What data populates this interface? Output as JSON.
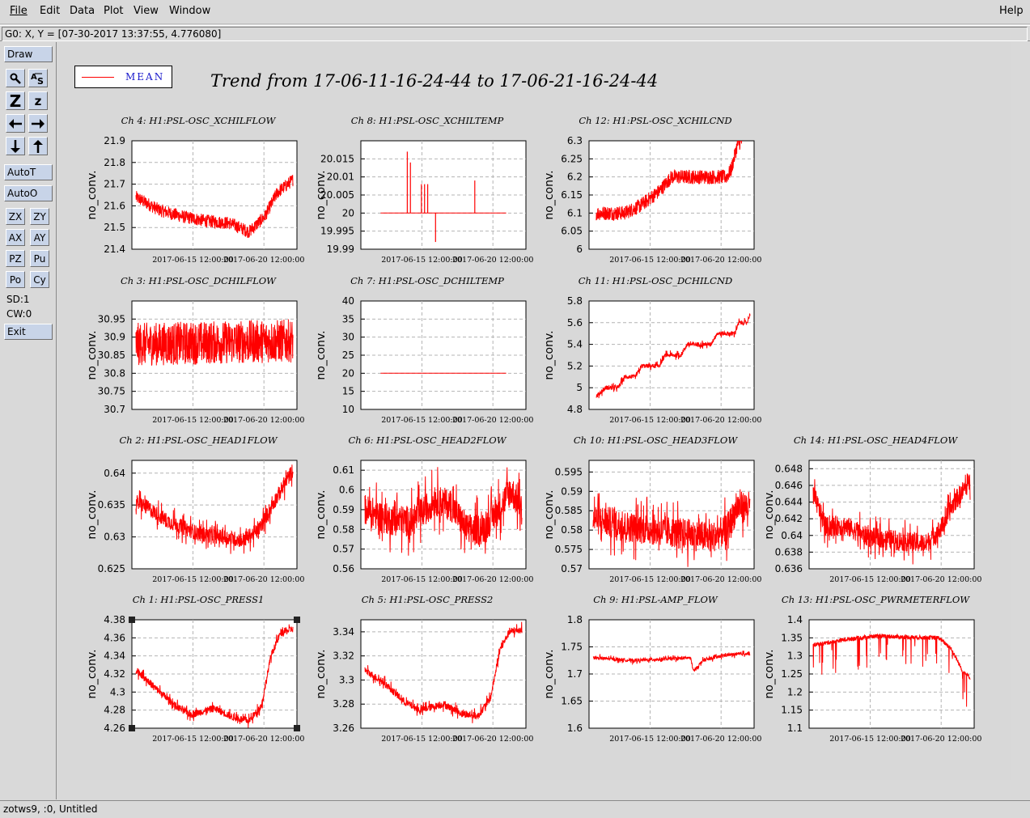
{
  "menu": {
    "file": "File",
    "edit": "Edit",
    "data": "Data",
    "plot": "Plot",
    "view": "View",
    "window": "Window",
    "help": "Help"
  },
  "coord_readout": "G0: X, Y = [07-30-2017 13:37:55, 4.776080]",
  "toolbar": {
    "draw": "Draw",
    "autot": "AutoT",
    "autoo": "AutoO",
    "zx": "ZX",
    "zy": "ZY",
    "ax": "AX",
    "ay": "AY",
    "pz": "PZ",
    "pu": "Pu",
    "po": "Po",
    "cy": "Cy",
    "sd": "SD:1",
    "cw": "CW:0",
    "exit": "Exit",
    "zoom_big": "Z",
    "zoom_small": "z",
    "icons": [
      "magnifier-icon",
      "autoscale-text-icon",
      "zoom-in-icon",
      "zoom-out-icon",
      "arrow-left-icon",
      "arrow-right-icon",
      "arrow-down-icon",
      "arrow-up-icon"
    ]
  },
  "legend": {
    "label": "MEAN",
    "line_color": "#ff0000",
    "text_color": "#1a1acc"
  },
  "title": "Trend from 17-06-11-16-24-44 to 17-06-21-16-24-44",
  "status": "zotws9, :0, Untitled",
  "colors": {
    "trace": "#ff0000",
    "grid": "#b4b4b4",
    "button": "#c8d4e8"
  },
  "chart_data": [
    {
      "type": "line",
      "title": "Ch 4: H1:PSL-OSC_XCHILFLOW",
      "ylabel": "no_conv.",
      "ylim": [
        21.4,
        21.9
      ],
      "yticks": [
        "21.9",
        "21.8",
        "21.7",
        "21.6",
        "21.5",
        "21.4"
      ],
      "xticks": [
        "2017-06-15 12:00:00",
        "2017-06-20 12:00:00"
      ],
      "shape": "noisy_band",
      "points": [
        [
          0,
          21.64
        ],
        [
          0.15,
          21.58
        ],
        [
          0.3,
          21.55
        ],
        [
          0.45,
          21.53
        ],
        [
          0.6,
          21.52
        ],
        [
          0.72,
          21.48
        ],
        [
          0.82,
          21.55
        ],
        [
          0.9,
          21.66
        ],
        [
          1,
          21.72
        ]
      ],
      "noise": 0.03
    },
    {
      "type": "line",
      "title": "Ch 8: H1:PSL-OSC_XCHILTEMP",
      "ylabel": "no_conv.",
      "ylim": [
        19.99,
        20.02
      ],
      "yticks": [
        "20.015",
        "20.01",
        "20.005",
        "20",
        "19.995",
        "19.99"
      ],
      "xticks": [
        "2017-06-15 12:00:00",
        "2017-06-20 12:00:00"
      ],
      "shape": "flat_spikes",
      "points": [
        [
          0.1,
          20
        ],
        [
          0.9,
          20
        ]
      ],
      "spikes": [
        [
          0.27,
          20.017
        ],
        [
          0.29,
          20.014
        ],
        [
          0.36,
          20.008
        ],
        [
          0.38,
          20.008
        ],
        [
          0.4,
          20.008
        ],
        [
          0.45,
          19.992
        ],
        [
          0.7,
          20.009
        ]
      ]
    },
    {
      "type": "line",
      "title": "Ch 12: H1:PSL-OSC_XCHILCND",
      "ylabel": "no_conv.",
      "ylim": [
        6,
        6.3
      ],
      "yticks": [
        "6.3",
        "6.25",
        "6.2",
        "6.15",
        "6.1",
        "6.05",
        "6"
      ],
      "xticks": [
        "2017-06-15 12:00:00",
        "2017-06-20 12:00:00"
      ],
      "shape": "ramp_band",
      "points": [
        [
          0.02,
          6.1
        ],
        [
          0.1,
          6.1
        ],
        [
          0.2,
          6.1
        ],
        [
          0.3,
          6.12
        ],
        [
          0.42,
          6.16
        ],
        [
          0.5,
          6.2
        ],
        [
          0.85,
          6.2
        ],
        [
          0.88,
          6.22
        ],
        [
          0.92,
          6.29
        ],
        [
          0.95,
          6.3
        ]
      ],
      "noise": 0.02
    },
    {
      "type": "line",
      "title": "Ch 3: H1:PSL-OSC_DCHILFLOW",
      "ylabel": "no_conv.",
      "ylim": [
        30.7,
        31
      ],
      "yticks": [
        "30.95",
        "30.9",
        "30.85",
        "30.8",
        "30.75",
        "30.7"
      ],
      "xticks": [
        "2017-06-15 12:00:00",
        "2017-06-20 12:00:00"
      ],
      "shape": "noisy_band",
      "points": [
        [
          0,
          30.88
        ],
        [
          1,
          30.89
        ]
      ],
      "noise": 0.06
    },
    {
      "type": "line",
      "title": "Ch 7: H1:PSL-OSC_DCHILTEMP",
      "ylabel": "no_conv.",
      "ylim": [
        10,
        40
      ],
      "yticks": [
        "40",
        "35",
        "30",
        "25",
        "20",
        "15",
        "10"
      ],
      "xticks": [
        "2017-06-15 12:00:00",
        "2017-06-20 12:00:00"
      ],
      "shape": "flat",
      "points": [
        [
          0.1,
          20
        ],
        [
          0.9,
          20
        ]
      ]
    },
    {
      "type": "line",
      "title": "Ch 11: H1:PSL-OSC_DCHILCND",
      "ylabel": "no_conv.",
      "ylim": [
        4.8,
        5.8
      ],
      "yticks": [
        "5.8",
        "5.6",
        "5.4",
        "5.2",
        "5",
        "4.8"
      ],
      "xticks": [
        "2017-06-15 12:00:00",
        "2017-06-20 12:00:00"
      ],
      "shape": "steps",
      "points": [
        [
          0.02,
          4.92
        ],
        [
          0.08,
          5
        ],
        [
          0.16,
          5
        ],
        [
          0.2,
          5.1
        ],
        [
          0.27,
          5.1
        ],
        [
          0.31,
          5.2
        ],
        [
          0.42,
          5.2
        ],
        [
          0.46,
          5.3
        ],
        [
          0.56,
          5.3
        ],
        [
          0.6,
          5.4
        ],
        [
          0.75,
          5.4
        ],
        [
          0.79,
          5.5
        ],
        [
          0.9,
          5.5
        ],
        [
          0.93,
          5.6
        ],
        [
          0.98,
          5.6
        ],
        [
          1,
          5.68
        ]
      ],
      "noise": 0.02
    },
    {
      "type": "line",
      "title": "Ch 2: H1:PSL-OSC_HEAD1FLOW",
      "ylabel": "no_conv.",
      "ylim": [
        0.625,
        0.642
      ],
      "yticks": [
        "0.64",
        "0.635",
        "0.63",
        "0.625"
      ],
      "xticks": [
        "2017-06-15 12:00:00",
        "2017-06-20 12:00:00"
      ],
      "shape": "noisy_line",
      "points": [
        [
          0,
          0.6355
        ],
        [
          0.08,
          0.6345
        ],
        [
          0.2,
          0.6325
        ],
        [
          0.3,
          0.6315
        ],
        [
          0.4,
          0.6305
        ],
        [
          0.55,
          0.63
        ],
        [
          0.68,
          0.6295
        ],
        [
          0.78,
          0.631
        ],
        [
          0.88,
          0.6355
        ],
        [
          1,
          0.6405
        ]
      ],
      "noise": 0.0012
    },
    {
      "type": "line",
      "title": "Ch 6: H1:PSL-OSC_HEAD2FLOW",
      "ylabel": "no_conv.",
      "ylim": [
        0.56,
        0.615
      ],
      "yticks": [
        "0.61",
        "0.6",
        "0.59",
        "0.58",
        "0.57",
        "0.56"
      ],
      "xticks": [
        "2017-06-15 12:00:00",
        "2017-06-20 12:00:00"
      ],
      "shape": "noisy_line",
      "points": [
        [
          0,
          0.59
        ],
        [
          0.15,
          0.585
        ],
        [
          0.3,
          0.584
        ],
        [
          0.45,
          0.595
        ],
        [
          0.55,
          0.592
        ],
        [
          0.65,
          0.58
        ],
        [
          0.75,
          0.58
        ],
        [
          0.85,
          0.59
        ],
        [
          0.93,
          0.6
        ],
        [
          1,
          0.59
        ]
      ],
      "noise": 0.008
    },
    {
      "type": "line",
      "title": "Ch 10: H1:PSL-OSC_HEAD3FLOW",
      "ylabel": "no_conv.",
      "ylim": [
        0.57,
        0.598
      ],
      "yticks": [
        "0.595",
        "0.59",
        "0.585",
        "0.58",
        "0.575",
        "0.57"
      ],
      "xticks": [
        "2017-06-15 12:00:00",
        "2017-06-20 12:00:00"
      ],
      "shape": "noisy_line",
      "points": [
        [
          0,
          0.583
        ],
        [
          0.2,
          0.581
        ],
        [
          0.4,
          0.58
        ],
        [
          0.6,
          0.579
        ],
        [
          0.75,
          0.578
        ],
        [
          0.85,
          0.58
        ],
        [
          0.92,
          0.586
        ],
        [
          1,
          0.586
        ]
      ],
      "noise": 0.004
    },
    {
      "type": "line",
      "title": "Ch 14: H1:PSL-OSC_HEAD4FLOW",
      "ylabel": "no_conv.",
      "ylim": [
        0.636,
        0.649
      ],
      "yticks": [
        "0.648",
        "0.646",
        "0.644",
        "0.642",
        "0.64",
        "0.638",
        "0.636"
      ],
      "xticks": [
        "2017-06-15 12:00:00",
        "2017-06-20 12:00:00"
      ],
      "shape": "noisy_line",
      "points": [
        [
          0,
          0.645
        ],
        [
          0.08,
          0.641
        ],
        [
          0.2,
          0.6412
        ],
        [
          0.35,
          0.6398
        ],
        [
          0.5,
          0.6395
        ],
        [
          0.62,
          0.6392
        ],
        [
          0.72,
          0.639
        ],
        [
          0.82,
          0.641
        ],
        [
          0.9,
          0.644
        ],
        [
          1,
          0.6465
        ]
      ],
      "noise": 0.0012
    },
    {
      "type": "line",
      "title": "Ch 1: H1:PSL-OSC_PRESS1",
      "ylabel": "no_conv.",
      "ylim": [
        4.26,
        4.38
      ],
      "yticks": [
        "4.38",
        "4.36",
        "4.34",
        "4.32",
        "4.3",
        "4.28",
        "4.26"
      ],
      "xticks": [
        "2017-06-15 12:00:00",
        "2017-06-20 12:00:00"
      ],
      "shape": "noisy_line",
      "selected": true,
      "points": [
        [
          0,
          4.325
        ],
        [
          0.12,
          4.305
        ],
        [
          0.25,
          4.285
        ],
        [
          0.35,
          4.275
        ],
        [
          0.5,
          4.282
        ],
        [
          0.62,
          4.272
        ],
        [
          0.72,
          4.268
        ],
        [
          0.8,
          4.285
        ],
        [
          0.86,
          4.34
        ],
        [
          0.92,
          4.365
        ],
        [
          1,
          4.37
        ]
      ],
      "noise": 0.004
    },
    {
      "type": "line",
      "title": "Ch 5: H1:PSL-OSC_PRESS2",
      "ylabel": "no_conv.",
      "ylim": [
        3.26,
        3.35
      ],
      "yticks": [
        "3.34",
        "3.32",
        "3.3",
        "3.28",
        "3.26"
      ],
      "xticks": [
        "2017-06-15 12:00:00",
        "2017-06-20 12:00:00"
      ],
      "shape": "noisy_line",
      "points": [
        [
          0,
          3.308
        ],
        [
          0.12,
          3.298
        ],
        [
          0.25,
          3.282
        ],
        [
          0.35,
          3.275
        ],
        [
          0.5,
          3.28
        ],
        [
          0.62,
          3.272
        ],
        [
          0.72,
          3.27
        ],
        [
          0.8,
          3.285
        ],
        [
          0.86,
          3.325
        ],
        [
          0.92,
          3.34
        ],
        [
          1,
          3.342
        ]
      ],
      "noise": 0.003
    },
    {
      "type": "line",
      "title": "Ch 9: H1:PSL-AMP_FLOW",
      "ylabel": "no_conv.",
      "ylim": [
        1.6,
        1.8
      ],
      "yticks": [
        "1.8",
        "1.75",
        "1.7",
        "1.65",
        "1.6"
      ],
      "xticks": [
        "2017-06-15 12:00:00",
        "2017-06-20 12:00:00"
      ],
      "shape": "noisy_line",
      "points": [
        [
          0,
          1.73
        ],
        [
          0.25,
          1.725
        ],
        [
          0.5,
          1.728
        ],
        [
          0.62,
          1.73
        ],
        [
          0.64,
          1.705
        ],
        [
          0.7,
          1.725
        ],
        [
          0.85,
          1.735
        ],
        [
          1,
          1.738
        ]
      ],
      "noise": 0.003
    },
    {
      "type": "line",
      "title": "Ch 13: H1:PSL-OSC_PWRMETERFLOW",
      "ylabel": "no_conv.",
      "ylim": [
        1.1,
        1.4
      ],
      "yticks": [
        "1.4",
        "1.35",
        "1.3",
        "1.25",
        "1.2",
        "1.15",
        "1.1"
      ],
      "xticks": [
        "2017-06-15 12:00:00",
        "2017-06-20 12:00:00"
      ],
      "shape": "dropouts",
      "points": [
        [
          0,
          1.33
        ],
        [
          0.2,
          1.345
        ],
        [
          0.4,
          1.355
        ],
        [
          0.6,
          1.352
        ],
        [
          0.8,
          1.35
        ],
        [
          0.88,
          1.32
        ],
        [
          0.95,
          1.26
        ],
        [
          1,
          1.24
        ]
      ],
      "noise": 0.006
    }
  ]
}
